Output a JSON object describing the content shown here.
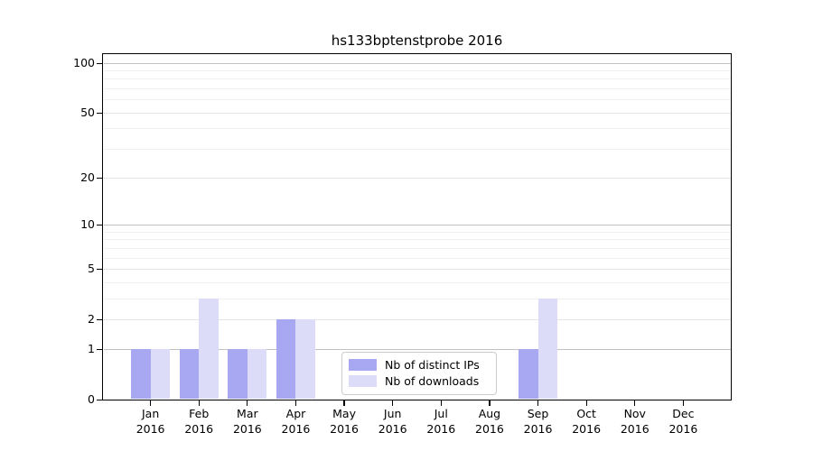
{
  "title": "hs133bptenstprobe 2016",
  "colors": {
    "ips_bar": "#a8a8f2",
    "downloads_bar": "#dcdcf8",
    "axis": "#000000",
    "grid_decade": "#c2c2c2",
    "grid_major": "#e4e4e4",
    "grid_minor": "#f0f0f0",
    "legend_border": "#cccccc",
    "background": "#ffffff"
  },
  "legend": {
    "items": [
      {
        "label": "Nb of distinct IPs",
        "color_key": "ips_bar"
      },
      {
        "label": "Nb of downloads",
        "color_key": "downloads_bar"
      }
    ]
  },
  "chart_data": {
    "type": "bar",
    "title": "hs133bptenstprobe 2016",
    "categories": [
      "Jan 2016",
      "Feb 2016",
      "Mar 2016",
      "Apr 2016",
      "May 2016",
      "Jun 2016",
      "Jul 2016",
      "Aug 2016",
      "Sep 2016",
      "Oct 2016",
      "Nov 2016",
      "Dec 2016"
    ],
    "series": [
      {
        "name": "Nb of distinct IPs",
        "values": [
          1,
          1,
          1,
          2,
          0,
          0,
          0,
          0,
          1,
          0,
          0,
          0
        ],
        "color": "#a8a8f2"
      },
      {
        "name": "Nb of downloads",
        "values": [
          1,
          3,
          1,
          2,
          0,
          0,
          0,
          0,
          3,
          0,
          0,
          0
        ],
        "color": "#dcdcf8"
      }
    ],
    "xlabel": "",
    "ylabel": "",
    "yscale": "log1p",
    "ylim": [
      0,
      114
    ],
    "y_ticks": [
      0,
      1,
      2,
      5,
      10,
      20,
      50,
      100
    ],
    "y_gridlines_decade": [
      1,
      10,
      100
    ],
    "y_gridlines_light": [
      2,
      5,
      20,
      50
    ],
    "y_gridlines_minor": [
      3,
      4,
      6,
      7,
      8,
      9,
      30,
      40,
      60,
      70,
      80,
      90
    ],
    "grid": "on",
    "legend_position": "lower center"
  }
}
